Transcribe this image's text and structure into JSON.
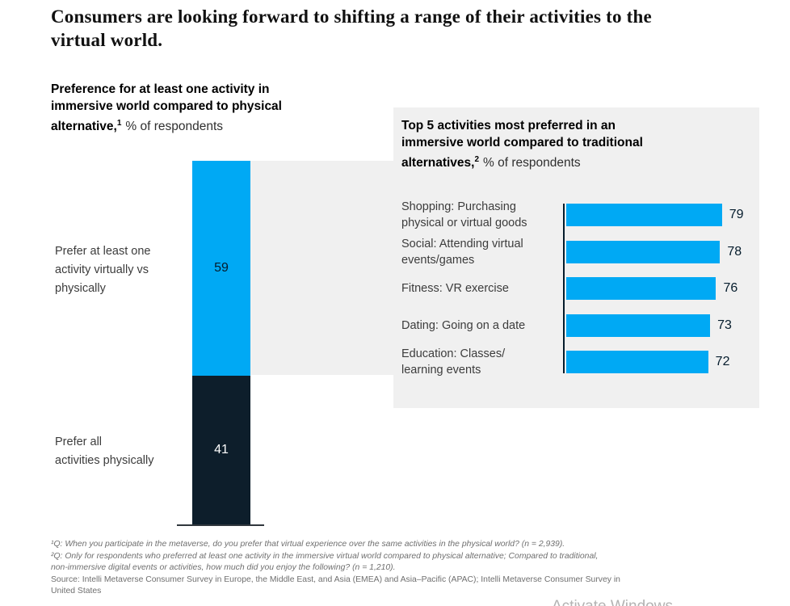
{
  "header": {
    "title_lines": [
      "Consumers are looking forward to shifting a range of their activities to the",
      "virtual world."
    ]
  },
  "left_chart": {
    "title": {
      "bold_lines": [
        "Preference for at least one activity in",
        "immersive world compared to physical"
      ],
      "last_bold": "alternative,",
      "sup": "1",
      "last_normal": "% of respondents"
    },
    "segments": [
      {
        "label_lines": [
          "Prefer at least one",
          "activity virtually vs",
          "physically"
        ],
        "value_color": "#051c2c"
      },
      {
        "label_lines": [
          "Prefer all",
          "activities physically"
        ],
        "value_color": "#ffffff"
      }
    ]
  },
  "right_chart": {
    "title": {
      "bold_lines": [
        "Top 5 activities most preferred in an",
        "immersive world compared to traditional"
      ],
      "last_bold": "alternatives,",
      "sup": "2",
      "last_normal": "% of respondents"
    },
    "rows": [
      {
        "label_lines": [
          "Shopping: Purchasing",
          "physical or virtual goods"
        ]
      },
      {
        "label_lines": [
          "Social: Attending virtual",
          "events/games"
        ]
      },
      {
        "label_lines": [
          "Fitness: VR exercise"
        ]
      },
      {
        "label_lines": [
          "Dating: Going on a date"
        ]
      },
      {
        "label_lines": [
          "Education: Classes/",
          "learning events"
        ]
      }
    ]
  },
  "footnotes": {
    "question_lines": [
      "¹Q: When you participate in the metaverse, do you prefer that virtual experience over the same activities in the physical world? (n = 2,939).",
      "²Q: Only for respondents who preferred at least one activity in the immersive virtual world compared to physical alternative; Compared to traditional,",
      "non-immersive digital events or activities, how much did you enjoy the following? (n = 1,210)."
    ],
    "source_lines": [
      "Source: Intelli Metaverse Consumer Survey in Europe, the Middle East, and Asia (EMEA) and Asia–Pacific (APAC); Intelli Metaverse Consumer Survey in",
      "United States"
    ]
  },
  "watermark": "Activate Windows",
  "colors": {
    "accent_blue": "#00a9f4",
    "dark_navy": "#0d1e2b",
    "ink": "#051c2c",
    "panel_gray": "#f0f0f0"
  },
  "chart_data": [
    {
      "type": "bar",
      "subtype": "stacked-vertical-single-column",
      "title": "Preference for at least one activity in immersive world compared to physical alternative, % of respondents",
      "categories": [
        "Prefer at least one activity virtually vs physically",
        "Prefer all activities physically"
      ],
      "values": [
        59,
        41
      ],
      "colors": [
        "#00a9f4",
        "#0d1e2b"
      ],
      "ylim": [
        0,
        100
      ],
      "grid": false,
      "legend": "none",
      "data_labels": "inside-center"
    },
    {
      "type": "bar",
      "subtype": "horizontal",
      "title": "Top 5 activities most preferred in an immersive world compared to traditional alternatives, % of respondents",
      "categories": [
        "Shopping: Purchasing physical or virtual goods",
        "Social: Attending virtual events/games",
        "Fitness: VR exercise",
        "Dating: Going on a date",
        "Education: Classes/learning events"
      ],
      "values": [
        79,
        78,
        76,
        73,
        72
      ],
      "bar_color": "#00a9f4",
      "xlim": [
        0,
        100
      ],
      "grid": false,
      "legend": "none",
      "data_labels": "end-of-bar"
    }
  ]
}
